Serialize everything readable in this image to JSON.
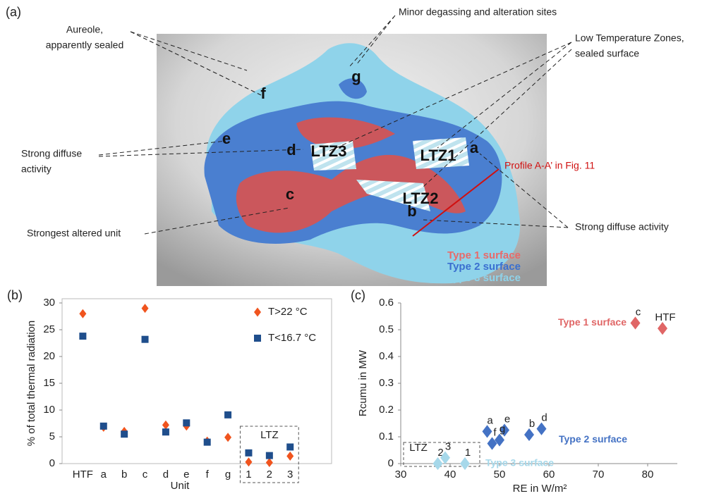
{
  "map": {
    "panel_label": "(a)",
    "callouts": [
      {
        "lines": [
          "Aureole,",
          "apparently sealed"
        ]
      },
      {
        "lines": [
          "Minor degassing and alteration sites"
        ]
      },
      {
        "lines": [
          "Low Temperature Zones,",
          "sealed surface"
        ]
      },
      {
        "lines": [
          "Strong diffuse",
          "activity"
        ]
      },
      {
        "lines": [
          "Strongest altered unit"
        ]
      },
      {
        "lines": [
          "Strong diffuse activity"
        ]
      },
      {
        "lines": [
          "Profile A-A’ in Fig. 11"
        ],
        "color": "#d01010"
      }
    ],
    "units": [
      "g",
      "f",
      "e",
      "d",
      "c",
      "b",
      "a",
      "LTZ1",
      "LTZ2",
      "LTZ3"
    ],
    "legend": [
      {
        "name": "Type 1 surface",
        "color": "#e86a6a"
      },
      {
        "name": "Type 2 surface",
        "color": "#3a6fd0"
      },
      {
        "name": "Type 3 surface",
        "color": "#8fd3ea"
      }
    ]
  },
  "chart_data": [
    {
      "type": "scatter",
      "panel_label": "(b)",
      "y_label": "% of total thermal radiation",
      "x_label": "Unit",
      "categories": [
        "HTF",
        "a",
        "b",
        "c",
        "d",
        "e",
        "f",
        "g",
        "1",
        "2",
        "3"
      ],
      "series": [
        {
          "name": "T>22 °C",
          "color": "#f0541e",
          "marker": "diamond",
          "values": [
            28,
            6.8,
            6,
            29,
            7.2,
            7,
            4.2,
            4.9,
            0.3,
            0.2,
            1.4
          ]
        },
        {
          "name": "T<16.7 °C",
          "color": "#1f4e8c",
          "marker": "square",
          "values": [
            23.8,
            7,
            5.5,
            23.2,
            5.9,
            7.6,
            4,
            9.1,
            2,
            1.5,
            3.1
          ]
        }
      ],
      "ylim": [
        0,
        30
      ],
      "yticks": [
        0,
        5,
        10,
        15,
        20,
        25,
        30
      ],
      "group_label": "LTZ",
      "legend": "upper right"
    },
    {
      "type": "scatter",
      "panel_label": "(c)",
      "y_label": "Rcumu in MW",
      "x_label": "RE in W/m²",
      "series": [
        {
          "name": "Type 1 surface",
          "color": "#e06666",
          "labels": [
            "c",
            "HTF"
          ],
          "x": [
            77.5,
            83
          ],
          "values": [
            0.525,
            0.505
          ]
        },
        {
          "name": "Type 2 surface",
          "color": "#4472c4",
          "labels": [
            "a",
            "e",
            "d",
            "b",
            "f",
            "g"
          ],
          "x": [
            47.5,
            51,
            58.5,
            56,
            48.5,
            50
          ],
          "values": [
            0.12,
            0.125,
            0.13,
            0.108,
            0.075,
            0.088
          ]
        },
        {
          "name": "Type 3 surface",
          "color": "#a6d8ea",
          "labels": [
            "2",
            "3",
            "1"
          ],
          "x": [
            37.5,
            39,
            43
          ],
          "values": [
            0,
            0.022,
            0
          ]
        }
      ],
      "xlim": [
        30,
        86
      ],
      "xticks": [
        30,
        40,
        50,
        60,
        70,
        80
      ],
      "ylim": [
        0,
        0.6
      ],
      "yticks": [
        0,
        0.1,
        0.2,
        0.3,
        0.4,
        0.5,
        0.6
      ],
      "group_label": "LTZ"
    }
  ]
}
